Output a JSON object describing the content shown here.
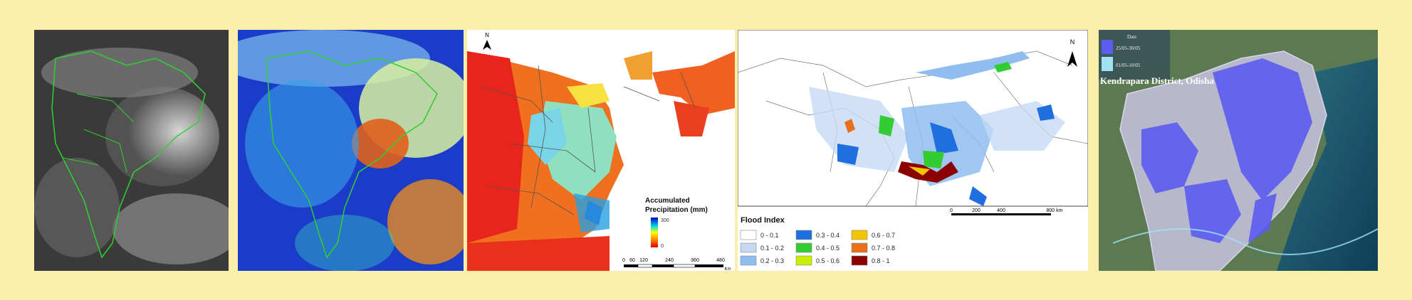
{
  "panel3": {
    "legend_title_line1": "Accumulated",
    "legend_title_line2": "Precipitation (mm)",
    "legend_max": "300",
    "legend_min": "0",
    "scale_ticks": [
      "0",
      "60",
      "120",
      "240",
      "360",
      "480"
    ],
    "scale_unit": "Km",
    "north": "N"
  },
  "panel4": {
    "legend_title": "Flood Index",
    "classes": [
      {
        "label": "0 - 0.1",
        "color": "#ffffff"
      },
      {
        "label": "0.1 - 0.2",
        "color": "#c5d9f5"
      },
      {
        "label": "0.2 - 0.3",
        "color": "#8fbdf0"
      },
      {
        "label": "0.3 - 0.4",
        "color": "#1f6fe0"
      },
      {
        "label": "0.4 - 0.5",
        "color": "#33cc33"
      },
      {
        "label": "0.5 - 0.6",
        "color": "#c8f000"
      },
      {
        "label": "0.6 - 0.7",
        "color": "#f5c400"
      },
      {
        "label": "0.7 - 0.8",
        "color": "#e8701a"
      },
      {
        "label": "0.8 - 1",
        "color": "#8b0000"
      }
    ],
    "scale_ticks": [
      "0",
      "200",
      "400",
      "800 km"
    ],
    "north": "N"
  },
  "panel5": {
    "legend_header": "Date",
    "legend_items": [
      {
        "label": "25/05-30/05",
        "color": "#5b5cf0"
      },
      {
        "label": "01/05-10/05",
        "color": "#9fe3f5"
      }
    ],
    "title": "Kendrapara District, Odisha"
  }
}
